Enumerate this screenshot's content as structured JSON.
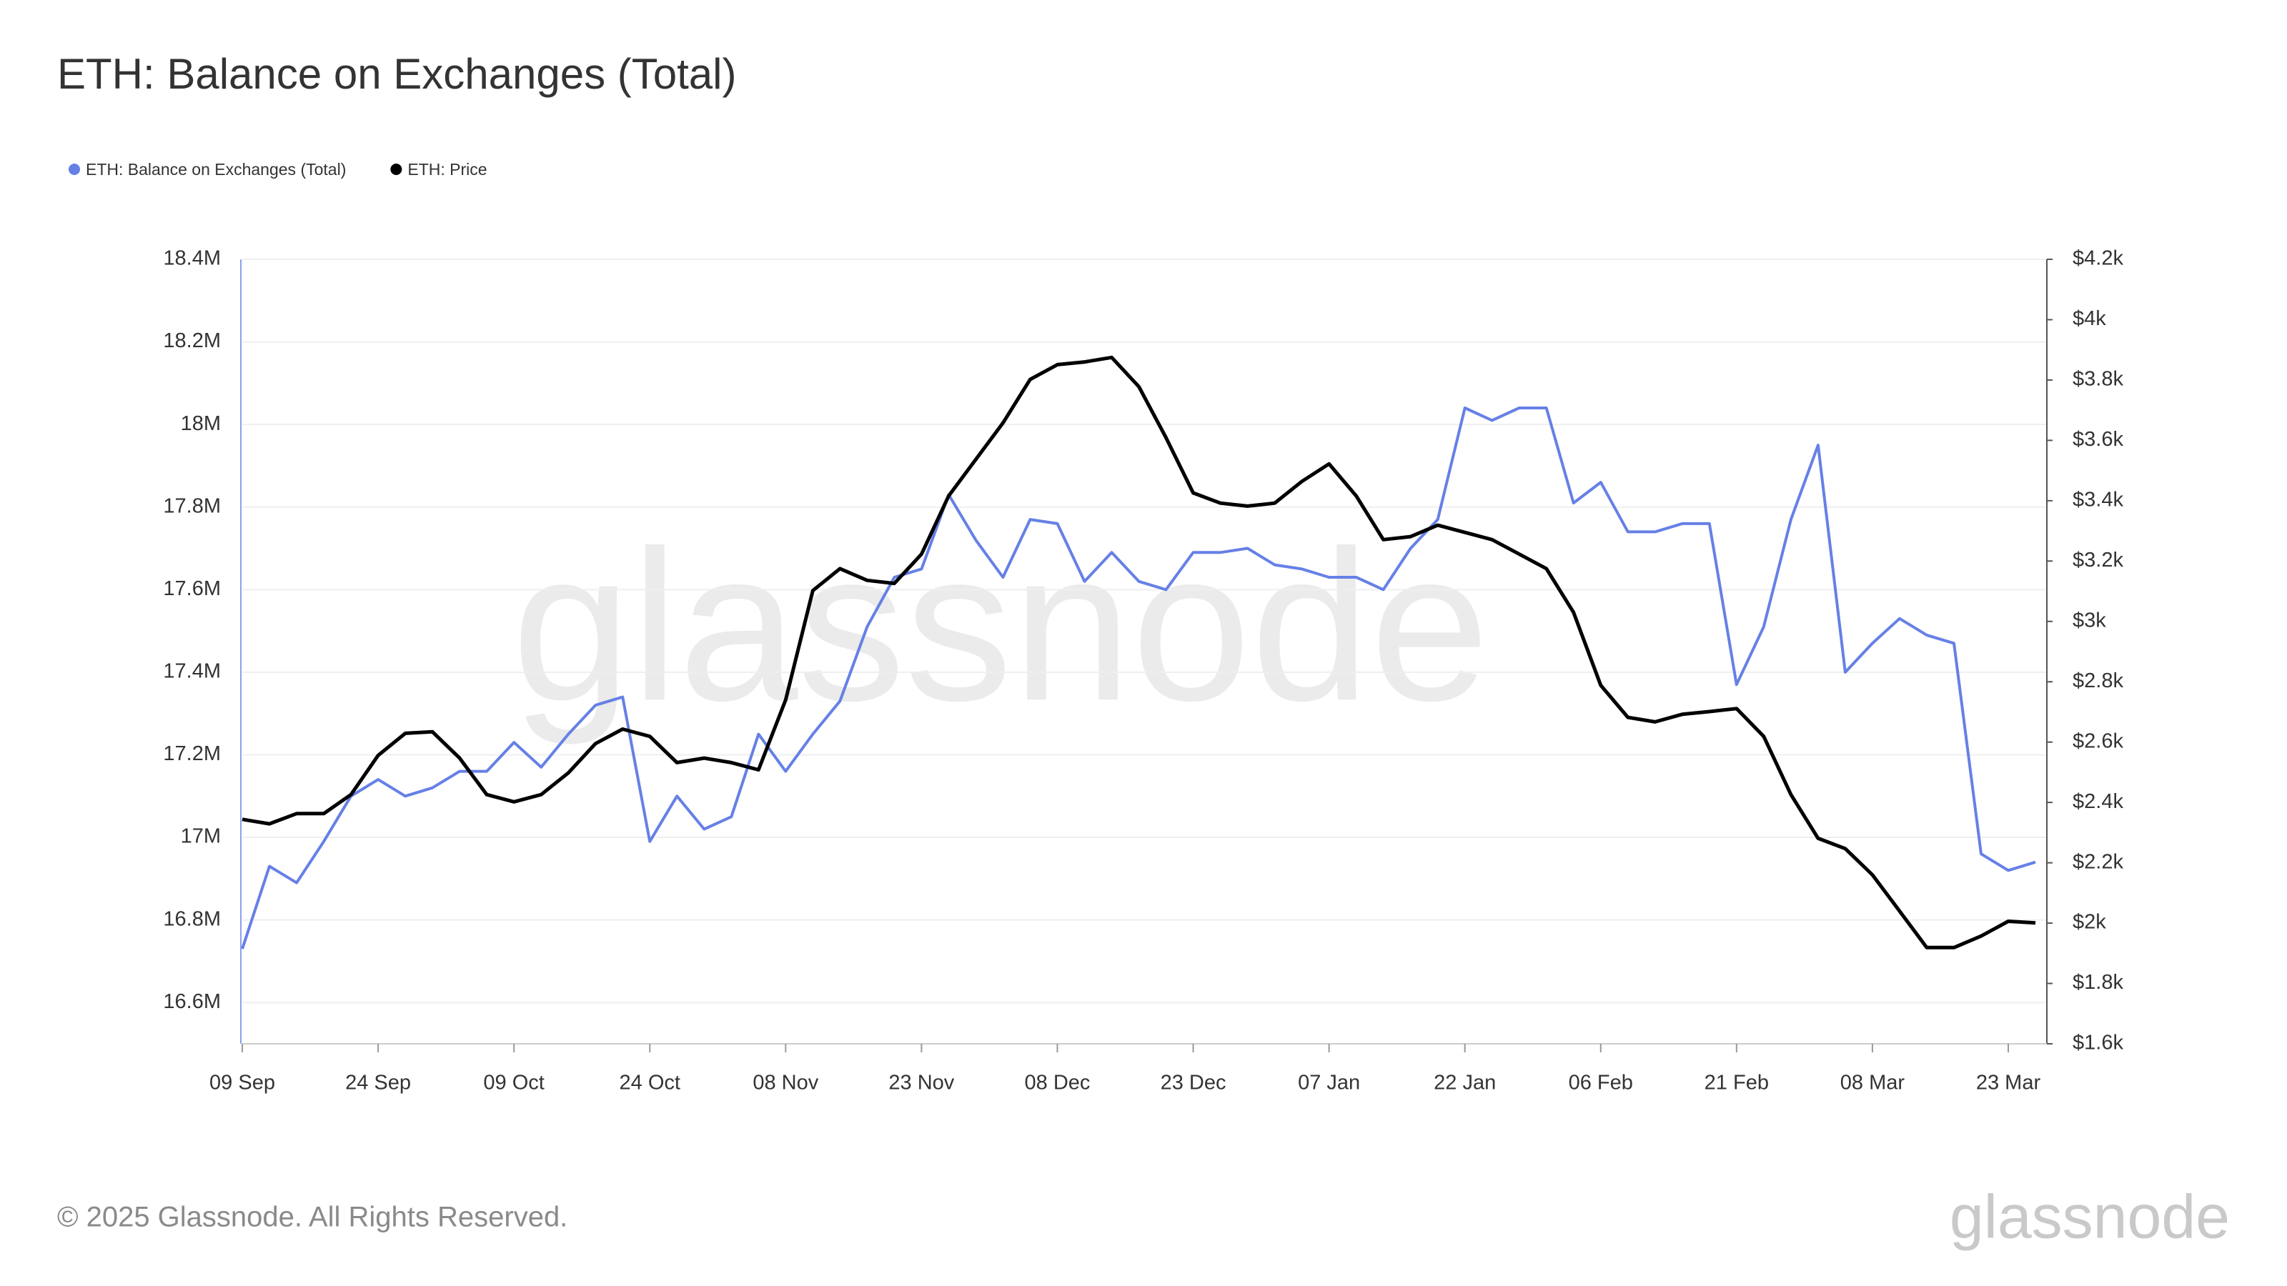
{
  "chart_data": {
    "type": "line",
    "title": "ETH: Balance on Exchanges (Total)",
    "footer": "© 2025 Glassnode. All Rights Reserved.",
    "logo": "glassnode",
    "watermark": "glassnode",
    "x": [
      "09 Sep",
      "12 Sep",
      "15 Sep",
      "18 Sep",
      "21 Sep",
      "24 Sep",
      "27 Sep",
      "30 Sep",
      "03 Oct",
      "06 Oct",
      "09 Oct",
      "12 Oct",
      "15 Oct",
      "18 Oct",
      "21 Oct",
      "24 Oct",
      "27 Oct",
      "30 Oct",
      "02 Nov",
      "05 Nov",
      "08 Nov",
      "11 Nov",
      "14 Nov",
      "17 Nov",
      "20 Nov",
      "23 Nov",
      "26 Nov",
      "29 Nov",
      "02 Dec",
      "05 Dec",
      "08 Dec",
      "11 Dec",
      "14 Dec",
      "17 Dec",
      "20 Dec",
      "23 Dec",
      "26 Dec",
      "29 Dec",
      "01 Jan",
      "04 Jan",
      "07 Jan",
      "10 Jan",
      "13 Jan",
      "16 Jan",
      "19 Jan",
      "22 Jan",
      "25 Jan",
      "28 Jan",
      "31 Jan",
      "03 Feb",
      "06 Feb",
      "09 Feb",
      "12 Feb",
      "15 Feb",
      "18 Feb",
      "21 Feb",
      "24 Feb",
      "27 Feb",
      "02 Mar",
      "05 Mar",
      "08 Mar",
      "11 Mar",
      "14 Mar",
      "17 Mar",
      "20 Mar",
      "23 Mar",
      "26 Mar"
    ],
    "series": [
      {
        "name": "ETH: Balance on Exchanges (Total)",
        "color": "#6680e6",
        "axis": "y",
        "values": [
          16730000,
          16930000,
          16890000,
          16990000,
          17100000,
          17140000,
          17100000,
          17120000,
          17160000,
          17160000,
          17230000,
          17170000,
          17250000,
          17320000,
          17340000,
          16990000,
          17100000,
          17020000,
          17050000,
          17250000,
          17160000,
          17250000,
          17330000,
          17510000,
          17630000,
          17650000,
          17830000,
          17720000,
          17630000,
          17770000,
          17760000,
          17620000,
          17690000,
          17620000,
          17600000,
          17690000,
          17690000,
          17700000,
          17660000,
          17650000,
          17630000,
          17630000,
          17600000,
          17700000,
          17770000,
          18040000,
          18010000,
          18040000,
          18040000,
          17810000,
          17860000,
          17740000,
          17740000,
          17760000,
          17760000,
          17370000,
          17510000,
          17770000,
          17950000,
          17400000,
          17470000,
          17530000,
          17490000,
          17470000,
          16960000,
          16920000,
          16940000
        ]
      },
      {
        "name": "ETH: Price",
        "color": "#000000",
        "axis": "y2",
        "values": [
          2344,
          2329,
          2363,
          2363,
          2426,
          2556,
          2629,
          2634,
          2547,
          2426,
          2402,
          2426,
          2498,
          2595,
          2643,
          2619,
          2532,
          2547,
          2532,
          2508,
          2740,
          3102,
          3175,
          3136,
          3126,
          3223,
          3416,
          3537,
          3658,
          3802,
          3851,
          3860,
          3875,
          3778,
          3609,
          3426,
          3392,
          3382,
          3392,
          3464,
          3522,
          3416,
          3271,
          3281,
          3319,
          3295,
          3271,
          3223,
          3175,
          3030,
          2788,
          2682,
          2667,
          2692,
          2701,
          2711,
          2619,
          2426,
          2281,
          2247,
          2160,
          2040,
          1919,
          1919,
          1957,
          2006,
          2001
        ]
      }
    ],
    "ylim": [
      16500000,
      18400000
    ],
    "yticks": [
      {
        "value": 16600000,
        "label": "16.6M"
      },
      {
        "value": 16800000,
        "label": "16.8M"
      },
      {
        "value": 17000000,
        "label": "17M"
      },
      {
        "value": 17200000,
        "label": "17.2M"
      },
      {
        "value": 17400000,
        "label": "17.4M"
      },
      {
        "value": 17600000,
        "label": "17.6M"
      },
      {
        "value": 17800000,
        "label": "17.8M"
      },
      {
        "value": 18000000,
        "label": "18M"
      },
      {
        "value": 18200000,
        "label": "18.2M"
      },
      {
        "value": 18400000,
        "label": "18.4M"
      }
    ],
    "y2lim": [
      1600,
      4200
    ],
    "y2ticks": [
      {
        "value": 1600,
        "label": "$1.6k"
      },
      {
        "value": 1800,
        "label": "$1.8k"
      },
      {
        "value": 2000,
        "label": "$2k"
      },
      {
        "value": 2200,
        "label": "$2.2k"
      },
      {
        "value": 2400,
        "label": "$2.4k"
      },
      {
        "value": 2600,
        "label": "$2.6k"
      },
      {
        "value": 2800,
        "label": "$2.8k"
      },
      {
        "value": 3000,
        "label": "$3k"
      },
      {
        "value": 3200,
        "label": "$3.2k"
      },
      {
        "value": 3400,
        "label": "$3.4k"
      },
      {
        "value": 3600,
        "label": "$3.6k"
      },
      {
        "value": 3800,
        "label": "$3.8k"
      },
      {
        "value": 4000,
        "label": "$4k"
      },
      {
        "value": 4200,
        "label": "$4.2k"
      }
    ],
    "grid": true
  }
}
